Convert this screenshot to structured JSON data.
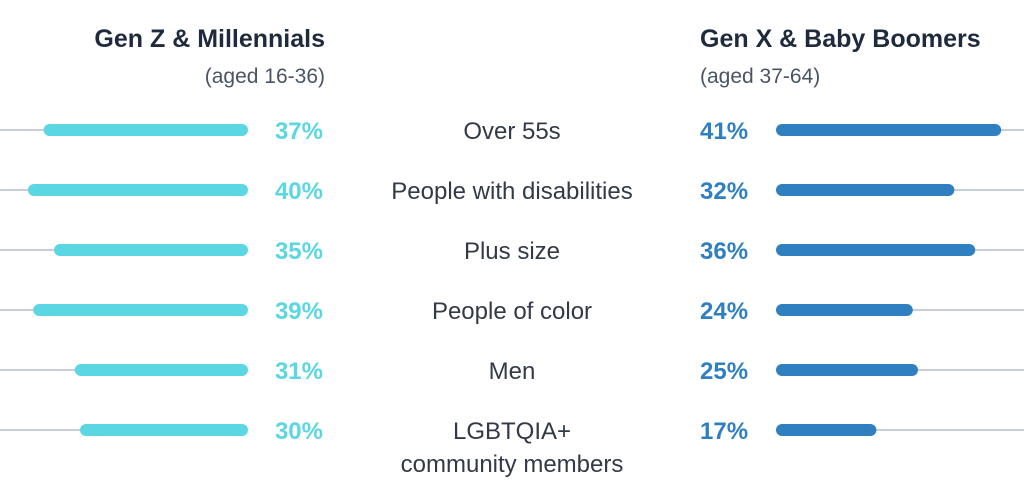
{
  "chart_data": {
    "type": "bar",
    "left_group": {
      "title": "Gen Z & Millennials",
      "subtitle": "(aged 16-36)"
    },
    "right_group": {
      "title": "Gen X & Baby Boomers",
      "subtitle": "(aged 37-64)"
    },
    "categories": [
      [
        "Over 55s"
      ],
      [
        "People with disabilities"
      ],
      [
        "Plus size"
      ],
      [
        "People of color"
      ],
      [
        "Men"
      ],
      [
        "LGBTQIA+",
        "community members"
      ]
    ],
    "series": [
      {
        "group": "left",
        "values": [
          37,
          40,
          35,
          39,
          31,
          30
        ],
        "labels": [
          "37%",
          "40%",
          "35%",
          "39%",
          "31%",
          "30%"
        ],
        "color": "#5bd6e3"
      },
      {
        "group": "right",
        "values": [
          41,
          32,
          36,
          24,
          25,
          17
        ],
        "labels": [
          "41%",
          "32%",
          "36%",
          "24%",
          "25%",
          "17%"
        ],
        "color": "#2f7fc1"
      }
    ],
    "track_color": "#c8cdd9",
    "xlim": [
      0,
      45
    ]
  }
}
